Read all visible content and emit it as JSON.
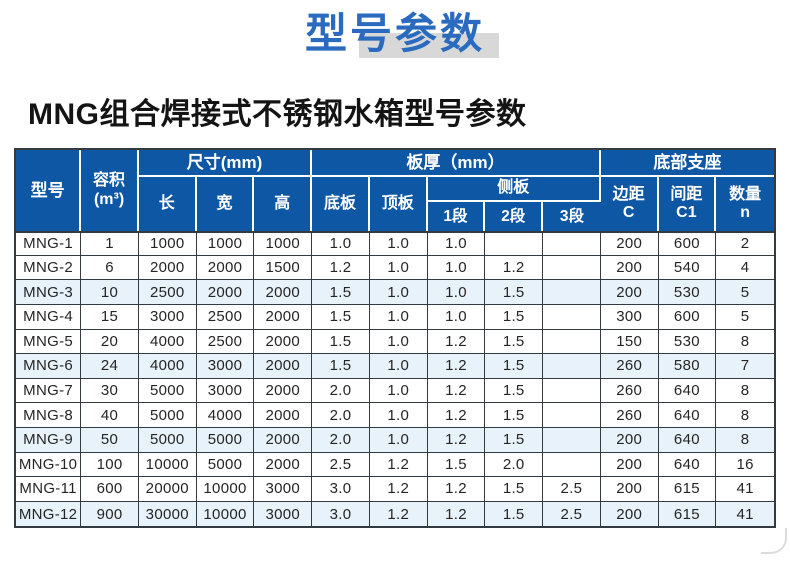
{
  "page": {
    "title": "型号参数",
    "subtitle": "MNG组合焊接式不锈钢水箱型号参数"
  },
  "colors": {
    "header_bg": "#0e57a5",
    "title_color": "#2a6bc0",
    "title_shadow": "#d8d8d8",
    "stripe": "#e8f2fa",
    "border_dark": "#333a41"
  },
  "table": {
    "header": {
      "model": "型号",
      "volume_line1": "容积",
      "volume_line2": "(m³)",
      "size_group": "尺寸(mm)",
      "length": "长",
      "width": "宽",
      "height": "高",
      "thickness_group": "板厚（mm）",
      "bottom_plate": "底板",
      "top_plate": "顶板",
      "side_plate": "侧板",
      "seg1": "1段",
      "seg2": "2段",
      "seg3": "3段",
      "support_group": "底部支座",
      "edge_line1": "边距",
      "edge_line2": "C",
      "spacing_line1": "间距",
      "spacing_line2": "C1",
      "qty_line1": "数量",
      "qty_line2": "n"
    },
    "rows": [
      [
        "MNG-1",
        "1",
        "1000",
        "1000",
        "1000",
        "1.0",
        "1.0",
        "1.0",
        "",
        "",
        "200",
        "600",
        "2"
      ],
      [
        "MNG-2",
        "6",
        "2000",
        "2000",
        "1500",
        "1.2",
        "1.0",
        "1.0",
        "1.2",
        "",
        "200",
        "540",
        "4"
      ],
      [
        "MNG-3",
        "10",
        "2500",
        "2000",
        "2000",
        "1.5",
        "1.0",
        "1.0",
        "1.5",
        "",
        "200",
        "530",
        "5"
      ],
      [
        "MNG-4",
        "15",
        "3000",
        "2500",
        "2000",
        "1.5",
        "1.0",
        "1.0",
        "1.5",
        "",
        "300",
        "600",
        "5"
      ],
      [
        "MNG-5",
        "20",
        "4000",
        "2500",
        "2000",
        "1.5",
        "1.0",
        "1.2",
        "1.5",
        "",
        "150",
        "530",
        "8"
      ],
      [
        "MNG-6",
        "24",
        "4000",
        "3000",
        "2000",
        "1.5",
        "1.0",
        "1.2",
        "1.5",
        "",
        "260",
        "580",
        "7"
      ],
      [
        "MNG-7",
        "30",
        "5000",
        "3000",
        "2000",
        "2.0",
        "1.0",
        "1.2",
        "1.5",
        "",
        "260",
        "640",
        "8"
      ],
      [
        "MNG-8",
        "40",
        "5000",
        "4000",
        "2000",
        "2.0",
        "1.0",
        "1.2",
        "1.5",
        "",
        "260",
        "640",
        "8"
      ],
      [
        "MNG-9",
        "50",
        "5000",
        "5000",
        "2000",
        "2.0",
        "1.0",
        "1.2",
        "1.5",
        "",
        "200",
        "640",
        "8"
      ],
      [
        "MNG-10",
        "100",
        "10000",
        "5000",
        "2000",
        "2.5",
        "1.2",
        "1.5",
        "2.0",
        "",
        "200",
        "640",
        "16"
      ],
      [
        "MNG-11",
        "600",
        "20000",
        "10000",
        "3000",
        "3.0",
        "1.2",
        "1.2",
        "1.5",
        "2.5",
        "200",
        "615",
        "41"
      ],
      [
        "MNG-12",
        "900",
        "30000",
        "10000",
        "3000",
        "3.0",
        "1.2",
        "1.2",
        "1.5",
        "2.5",
        "200",
        "615",
        "41"
      ]
    ],
    "stripe_every": 3
  }
}
